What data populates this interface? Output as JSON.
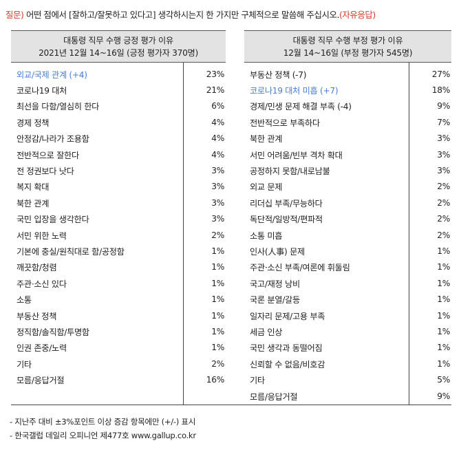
{
  "question": {
    "prefix": "질문)",
    "text": " 어떤 점에서 [잘하고/잘못하고 있다고] 생각하시는지 한 가지만 구체적으로 말씀해 주십시오.",
    "suffix": "(자유응답)"
  },
  "positive": {
    "title": "대통령 직무 수행 긍정 평가 이유",
    "subtitle": "2021년 12월 14~16일 (긍정 평가자 370명)",
    "rows": [
      {
        "label": "외교/국제 관계 (+4)",
        "value": "23%",
        "highlight": true
      },
      {
        "label": "코로나19 대처",
        "value": "21%",
        "highlight": false
      },
      {
        "label": "최선을 다함/열심히 한다",
        "value": "6%",
        "highlight": false
      },
      {
        "label": "경제 정책",
        "value": "4%",
        "highlight": false
      },
      {
        "label": "안정감/나라가 조용함",
        "value": "4%",
        "highlight": false
      },
      {
        "label": "전반적으로 잘한다",
        "value": "4%",
        "highlight": false
      },
      {
        "label": "전 정권보다 낫다",
        "value": "3%",
        "highlight": false
      },
      {
        "label": "복지 확대",
        "value": "3%",
        "highlight": false
      },
      {
        "label": "북한 관계",
        "value": "3%",
        "highlight": false
      },
      {
        "label": "국민 입장을 생각한다",
        "value": "3%",
        "highlight": false
      },
      {
        "label": "서민 위한 노력",
        "value": "2%",
        "highlight": false
      },
      {
        "label": "기본에 충실/원칙대로 함/공정함",
        "value": "1%",
        "highlight": false
      },
      {
        "label": "깨끗함/청렴",
        "value": "1%",
        "highlight": false
      },
      {
        "label": "주관·소신 있다",
        "value": "1%",
        "highlight": false
      },
      {
        "label": "소통",
        "value": "1%",
        "highlight": false
      },
      {
        "label": "부동산 정책",
        "value": "1%",
        "highlight": false
      },
      {
        "label": "정직함/솔직함/투명함",
        "value": "1%",
        "highlight": false
      },
      {
        "label": "인권 존중/노력",
        "value": "1%",
        "highlight": false
      },
      {
        "label": "기타",
        "value": "2%",
        "highlight": false
      },
      {
        "label": "모름/응답거절",
        "value": "16%",
        "highlight": false
      }
    ]
  },
  "negative": {
    "title": "대통령 직무 수행 부정 평가 이유",
    "subtitle": "12월 14~16일 (부정 평가자 545명)",
    "rows": [
      {
        "label": "부동산 정책 (-7)",
        "value": "27%",
        "highlight": false
      },
      {
        "label": "코로나19 대처 미흡 (+7)",
        "value": "18%",
        "highlight": true
      },
      {
        "label": "경제/민생 문제 해결 부족 (-4)",
        "value": "9%",
        "highlight": false
      },
      {
        "label": "전반적으로 부족하다",
        "value": "7%",
        "highlight": false
      },
      {
        "label": "북한 관계",
        "value": "3%",
        "highlight": false
      },
      {
        "label": "서민 어려움/빈부 격차 확대",
        "value": "3%",
        "highlight": false
      },
      {
        "label": "공정하지 못함/내로남불",
        "value": "3%",
        "highlight": false
      },
      {
        "label": "외교 문제",
        "value": "2%",
        "highlight": false
      },
      {
        "label": "리더십 부족/무능하다",
        "value": "2%",
        "highlight": false
      },
      {
        "label": "독단적/일방적/편파적",
        "value": "2%",
        "highlight": false
      },
      {
        "label": "소통 미흡",
        "value": "2%",
        "highlight": false
      },
      {
        "label": "인사(人事) 문제",
        "value": "1%",
        "highlight": false
      },
      {
        "label": "주관·소신 부족/여론에 휘둘림",
        "value": "1%",
        "highlight": false
      },
      {
        "label": "국고/재정 낭비",
        "value": "1%",
        "highlight": false
      },
      {
        "label": "국론 분열/갈등",
        "value": "1%",
        "highlight": false
      },
      {
        "label": "일자리 문제/고용 부족",
        "value": "1%",
        "highlight": false
      },
      {
        "label": "세금 인상",
        "value": "1%",
        "highlight": false
      },
      {
        "label": "국민 생각과 동떨어짐",
        "value": "1%",
        "highlight": false
      },
      {
        "label": "신뢰할 수 없음/비호감",
        "value": "1%",
        "highlight": false
      },
      {
        "label": "기타",
        "value": "5%",
        "highlight": false
      },
      {
        "label": "모름/응답거절",
        "value": "9%",
        "highlight": false
      }
    ]
  },
  "notes": [
    "- 지난주 대비 ±3%포인트 이상 증감 항목에만 (+/-) 표시",
    "- 한국갤럽 데일리 오피니언 제477호 www.gallup.co.kr"
  ]
}
